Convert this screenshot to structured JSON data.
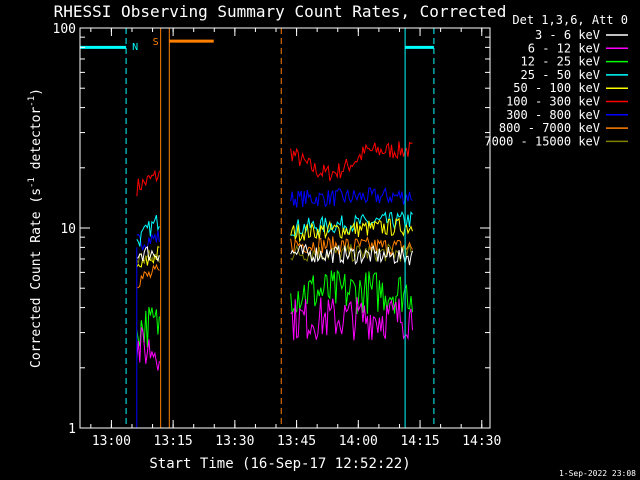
{
  "chart_data": {
    "type": "line",
    "title": "RHESSI Observing Summary Count Rates, Corrected",
    "xlabel": "Start Time (16-Sep-17 12:52:22)",
    "ylabel_main": "Corrected Count Rate (s",
    "ylabel_sup1": "-1",
    "ylabel_mid": " detector",
    "ylabel_sup2": "-1",
    "ylabel_end": ")",
    "yscale": "log",
    "ylim": [
      1,
      100
    ],
    "xlim": [
      "12:52:22",
      "14:32:00"
    ],
    "x_ticks": [
      "13:00",
      "13:15",
      "13:30",
      "13:45",
      "14:00",
      "14:15",
      "14:30"
    ],
    "x_tick_minutes": [
      7.63,
      22.63,
      37.63,
      52.63,
      67.63,
      82.63,
      97.63
    ],
    "y_ticks": [
      {
        "value": 1,
        "label": "1"
      },
      {
        "value": 10,
        "label": "10"
      },
      {
        "value": 100,
        "label": "100"
      }
    ],
    "legend_header": "Det 1,3,6, Att 0",
    "legend_placement": "right",
    "footer_date": "1-Sep-2022 23:08",
    "segments_minutes": [
      [
        13.8,
        19.3
      ],
      [
        51.2,
        80.8
      ]
    ],
    "series": [
      {
        "name": "3 - 6 keV",
        "color": "#ffffff",
        "seg": [
          [
            7.5,
            7.5
          ],
          [
            7.5,
            7.2
          ]
        ]
      },
      {
        "name": "6 - 12 keV",
        "color": "#ff00ff",
        "seg": [
          [
            2.5,
            2.5
          ],
          [
            3.5,
            3.6
          ]
        ]
      },
      {
        "name": "12 - 25 keV",
        "color": "#00ff00",
        "seg": [
          [
            3.2,
            3.3
          ],
          [
            4.8,
            4.8
          ]
        ]
      },
      {
        "name": "25 - 50 keV",
        "color": "#00ffff",
        "seg": [
          [
            8.5,
            11.0
          ],
          [
            10.0,
            11.0
          ]
        ]
      },
      {
        "name": "50 - 100 keV",
        "color": "#ffff00",
        "seg": [
          [
            6.2,
            7.5
          ],
          [
            9.5,
            10.2
          ]
        ]
      },
      {
        "name": "100 - 300 keV",
        "color": "#ff0000",
        "seg": [
          [
            16.0,
            18.5
          ],
          [
            24.0,
            24.5
          ]
        ]
      },
      {
        "name": "300 - 800 keV",
        "color": "#0000ff",
        "seg": [
          [
            8.5,
            9.0
          ],
          [
            14.0,
            14.5
          ]
        ]
      },
      {
        "name": "800 - 7000 keV",
        "color": "#ff8000",
        "seg": [
          [
            5.5,
            6.0
          ],
          [
            8.3,
            8.0
          ]
        ]
      },
      {
        "name": "7000 - 15000 keV",
        "color": "#808000",
        "seg": [
          [
            7.0,
            7.2
          ],
          [
            7.5,
            7.5
          ]
        ]
      }
    ],
    "annotations": {
      "night_label": "N",
      "saa_label": "S",
      "night_color": "#00ffff",
      "saa_color": "#ff8000",
      "night_bars": [
        [
          0.0,
          11.2
        ],
        [
          79.0,
          86.0
        ]
      ],
      "night_solid_lines": [
        79.0
      ],
      "night_dashed_lines": [
        11.2,
        86.0
      ],
      "saa_bars": [
        [
          21.7,
          32.5
        ]
      ],
      "saa_solid_lines": [
        19.6,
        21.7
      ],
      "saa_dashed_lines": [
        48.9
      ]
    }
  }
}
